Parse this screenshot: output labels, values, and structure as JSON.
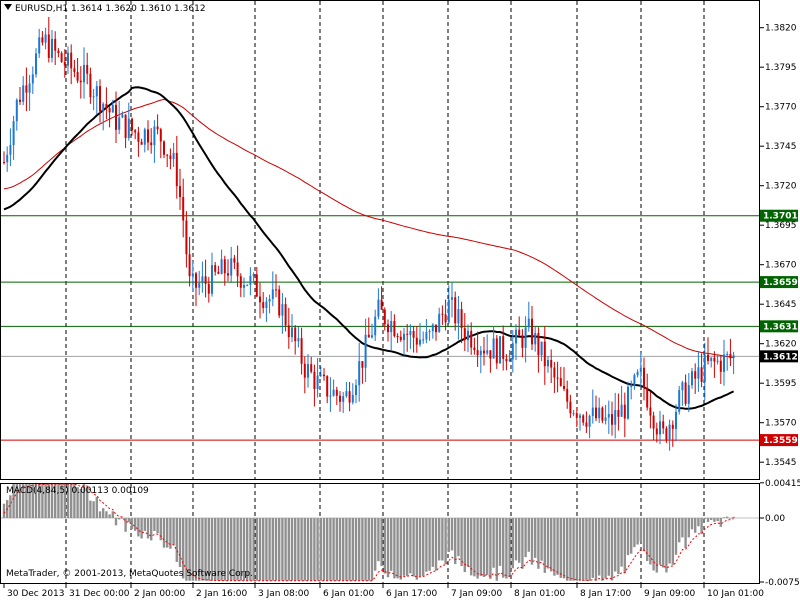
{
  "header": {
    "symbol": "EURUSD,H1",
    "ohlc": "1.3614 1.3620 1.3610 1.3612"
  },
  "macd_label": "MACD(4,84,5) 0.00113 0.00109",
  "copyright": "MetaTrader, © 2001-2013, MetaQuotes Software Corp.",
  "price_axis_labels": [
    "1.3820",
    "1.3795",
    "1.3770",
    "1.3745",
    "1.3720",
    "1.3695",
    "1.3670",
    "1.3645",
    "1.3620",
    "1.3595",
    "1.3570",
    "1.3545"
  ],
  "macd_axis_labels": [
    "0.00415",
    "0.00",
    "-0.00755"
  ],
  "time_axis_labels": [
    "30 Dec 2013",
    "31 Dec 00:00",
    "2 Jan 00:00",
    "2 Jan 16:00",
    "3 Jan 08:00",
    "6 Jan 01:00",
    "6 Jan 17:00",
    "7 Jan 09:00",
    "8 Jan 01:00",
    "8 Jan 17:00",
    "9 Jan 09:00",
    "10 Jan 01:00"
  ],
  "horizontal_levels": [
    {
      "price": 1.3701,
      "label": "1.3701",
      "color": "#006400"
    },
    {
      "price": 1.3659,
      "label": "1.3659",
      "color": "#006400"
    },
    {
      "price": 1.3631,
      "label": "1.3631",
      "color": "#006400"
    },
    {
      "price": 1.3559,
      "label": "1.3559",
      "color": "#d00000"
    }
  ],
  "current_price": {
    "price": 1.3612,
    "label": "1.3612"
  },
  "colors": {
    "bull": "#1e78d2",
    "bear": "#d00000",
    "ma_fast": "#000000",
    "ma_slow": "#cc0000",
    "macd_hist": "#909090",
    "macd_signal": "#ff0000",
    "grid": "#000000"
  },
  "chart_data": {
    "type": "candlestick",
    "symbol": "EURUSD",
    "timeframe": "H1",
    "price_range": [
      1.3535,
      1.3835
    ],
    "key_points": [
      [
        "30 Dec 2013",
        1.3735
      ],
      [
        "30 Dec",
        1.3775
      ],
      [
        "31 Dec 00:00",
        1.3812
      ],
      [
        "31 Dec 04:00",
        1.38
      ],
      [
        "31 Dec 10:00",
        1.3785
      ],
      [
        "31 Dec 16:00",
        1.3762
      ],
      [
        "31 Dec 22:00",
        1.3752
      ],
      [
        "2 Jan 00:00",
        1.3755
      ],
      [
        "2 Jan 04:00",
        1.375
      ],
      [
        "2 Jan 08:00",
        1.373
      ],
      [
        "2 Jan 10:00",
        1.37
      ],
      [
        "2 Jan 12:00",
        1.3655
      ],
      [
        "2 Jan 16:00",
        1.366
      ],
      [
        "2 Jan 20:00",
        1.3668
      ],
      [
        "3 Jan 00:00",
        1.366
      ],
      [
        "3 Jan 04:00",
        1.365
      ],
      [
        "3 Jan 08:00",
        1.3645
      ],
      [
        "3 Jan 12:00",
        1.3625
      ],
      [
        "3 Jan 16:00",
        1.3605
      ],
      [
        "3 Jan 20:00",
        1.3595
      ],
      [
        "6 Jan 01:00",
        1.359
      ],
      [
        "6 Jan 06:00",
        1.3585
      ],
      [
        "6 Jan 10:00",
        1.361
      ],
      [
        "6 Jan 13:00",
        1.364
      ],
      [
        "6 Jan 17:00",
        1.3632
      ],
      [
        "6 Jan 22:00",
        1.3625
      ],
      [
        "7 Jan 04:00",
        1.3622
      ],
      [
        "7 Jan 09:00",
        1.3645
      ],
      [
        "7 Jan 13:00",
        1.3628
      ],
      [
        "7 Jan 18:00",
        1.3618
      ],
      [
        "8 Jan 01:00",
        1.3615
      ],
      [
        "8 Jan 05:00",
        1.3628
      ],
      [
        "8 Jan 09:00",
        1.3605
      ],
      [
        "8 Jan 13:00",
        1.3585
      ],
      [
        "8 Jan 17:00",
        1.3575
      ],
      [
        "9 Jan 00:00",
        1.357
      ],
      [
        "9 Jan 05:00",
        1.358
      ],
      [
        "9 Jan 09:00",
        1.36
      ],
      [
        "9 Jan 12:00",
        1.356
      ],
      [
        "9 Jan 17:00",
        1.3585
      ],
      [
        "10 Jan 01:00",
        1.3605
      ],
      [
        "10 Jan 06:00",
        1.3612
      ]
    ],
    "indicators": [
      "moving average (fast)",
      "moving average (slow)",
      "MACD(4,84,5)"
    ],
    "macd_range": [
      -0.00755,
      0.00415
    ],
    "grid": true
  }
}
